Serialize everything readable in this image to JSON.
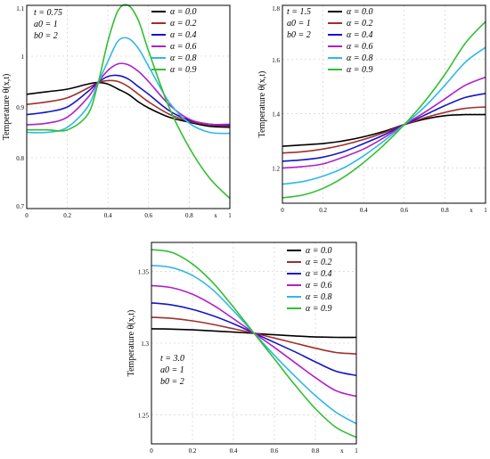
{
  "chart_data": [
    {
      "type": "line",
      "ylabel": "Temperature θ(x,t)",
      "xlabel": "x",
      "params": [
        "t = 0.75",
        "a0 = 1",
        "b0 = 2"
      ],
      "xlim": [
        0,
        1
      ],
      "ylim": [
        0.7,
        1.1
      ],
      "xticks": [
        "0",
        "0.2",
        "0.4",
        "0.6",
        "0.8",
        "x",
        "1"
      ],
      "yticks": [
        "0.7",
        "0.8",
        "0.9",
        "1",
        "1.1"
      ],
      "legend": "top-right",
      "x": [
        0,
        0.1,
        0.2,
        0.3,
        0.35,
        0.4,
        0.45,
        0.5,
        0.55,
        0.6,
        0.7,
        0.8,
        0.9,
        1.0
      ],
      "series": [
        {
          "name": "α = 0.0",
          "color": "#000000",
          "values": [
            0.925,
            0.93,
            0.935,
            0.945,
            0.948,
            0.945,
            0.935,
            0.925,
            0.91,
            0.898,
            0.88,
            0.87,
            0.862,
            0.86
          ]
        },
        {
          "name": "α = 0.2",
          "color": "#a0302a",
          "values": [
            0.905,
            0.91,
            0.918,
            0.937,
            0.948,
            0.952,
            0.95,
            0.94,
            0.925,
            0.91,
            0.886,
            0.872,
            0.865,
            0.862
          ]
        },
        {
          "name": "α = 0.4",
          "color": "#1515c8",
          "values": [
            0.885,
            0.89,
            0.9,
            0.93,
            0.948,
            0.96,
            0.962,
            0.955,
            0.94,
            0.925,
            0.893,
            0.874,
            0.866,
            0.864
          ]
        },
        {
          "name": "α = 0.6",
          "color": "#b020c8",
          "values": [
            0.865,
            0.868,
            0.88,
            0.918,
            0.948,
            0.972,
            0.985,
            0.983,
            0.97,
            0.95,
            0.905,
            0.876,
            0.866,
            0.866
          ]
        },
        {
          "name": "α = 0.8",
          "color": "#30b8e8",
          "values": [
            0.85,
            0.85,
            0.86,
            0.9,
            0.946,
            0.99,
            1.03,
            1.035,
            1.015,
            0.98,
            0.91,
            0.868,
            0.85,
            0.848
          ]
        },
        {
          "name": "α = 0.9",
          "color": "#30c030",
          "values": [
            0.855,
            0.855,
            0.855,
            0.885,
            0.945,
            1.03,
            1.09,
            1.1,
            1.07,
            1.01,
            0.9,
            0.82,
            0.76,
            0.72
          ]
        }
      ]
    },
    {
      "type": "line",
      "ylabel": "Temperature θ(x,t)",
      "xlabel": "x",
      "params": [
        "t = 1.5",
        "a0 = 1",
        "b0 = 2"
      ],
      "xlim": [
        0,
        1
      ],
      "ylim": [
        1.07,
        1.8
      ],
      "xticks": [
        "0",
        "0.2",
        "0.4",
        "0.6",
        "0.8",
        "x",
        "1"
      ],
      "yticks": [
        "1.2",
        "1.4",
        "1.6",
        "1.8"
      ],
      "legend": "top-left",
      "x": [
        0,
        0.1,
        0.2,
        0.3,
        0.4,
        0.5,
        0.6,
        0.7,
        0.8,
        0.9,
        1.0
      ],
      "series": [
        {
          "name": "α = 0.0",
          "color": "#000000",
          "values": [
            1.28,
            1.285,
            1.29,
            1.3,
            1.315,
            1.335,
            1.36,
            1.38,
            1.393,
            1.397,
            1.397
          ]
        },
        {
          "name": "α = 0.2",
          "color": "#a0302a",
          "values": [
            1.255,
            1.26,
            1.27,
            1.285,
            1.305,
            1.33,
            1.36,
            1.385,
            1.405,
            1.42,
            1.425
          ]
        },
        {
          "name": "α = 0.4",
          "color": "#1515c8",
          "values": [
            1.225,
            1.23,
            1.24,
            1.26,
            1.29,
            1.322,
            1.36,
            1.395,
            1.43,
            1.46,
            1.475
          ]
        },
        {
          "name": "α = 0.6",
          "color": "#b020c8",
          "values": [
            1.2,
            1.205,
            1.215,
            1.24,
            1.27,
            1.312,
            1.36,
            1.405,
            1.455,
            1.505,
            1.535
          ]
        },
        {
          "name": "α = 0.8",
          "color": "#30b8e8",
          "values": [
            1.14,
            1.15,
            1.17,
            1.2,
            1.245,
            1.3,
            1.36,
            1.425,
            1.505,
            1.59,
            1.645
          ]
        },
        {
          "name": "α = 0.9",
          "color": "#30c030",
          "values": [
            1.09,
            1.1,
            1.125,
            1.165,
            1.22,
            1.285,
            1.36,
            1.445,
            1.545,
            1.66,
            1.74
          ]
        }
      ]
    },
    {
      "type": "line",
      "ylabel": "Temperature θ(x,t)",
      "xlabel": "x",
      "params": [
        "t = 3.0",
        "a0 = 1",
        "b0 = 2"
      ],
      "xlim": [
        0,
        1
      ],
      "ylim": [
        1.23,
        1.37
      ],
      "xticks": [
        "0",
        "0.2",
        "0.4",
        "0.6",
        "0.8",
        "x",
        "1"
      ],
      "yticks": [
        "1.25",
        "1.3",
        "1.35"
      ],
      "legend": "top-right",
      "x": [
        0,
        0.1,
        0.2,
        0.3,
        0.4,
        0.5,
        0.6,
        0.7,
        0.8,
        0.9,
        1.0
      ],
      "series": [
        {
          "name": "α = 0.0",
          "color": "#000000",
          "values": [
            1.31,
            1.3097,
            1.3092,
            1.3085,
            1.3077,
            1.3068,
            1.3058,
            1.305,
            1.3043,
            1.304,
            1.304
          ]
        },
        {
          "name": "α = 0.2",
          "color": "#a0302a",
          "values": [
            1.318,
            1.3172,
            1.3155,
            1.313,
            1.31,
            1.307,
            1.3035,
            1.3,
            1.2965,
            1.2935,
            1.2925
          ]
        },
        {
          "name": "α = 0.4",
          "color": "#1515c8",
          "values": [
            1.328,
            1.3265,
            1.3235,
            1.319,
            1.3135,
            1.307,
            1.3005,
            1.294,
            1.287,
            1.2805,
            1.2775
          ]
        },
        {
          "name": "α = 0.6",
          "color": "#b020c8",
          "values": [
            1.34,
            1.3385,
            1.334,
            1.3265,
            1.317,
            1.307,
            1.297,
            1.2865,
            1.276,
            1.267,
            1.263
          ]
        },
        {
          "name": "α = 0.8",
          "color": "#30b8e8",
          "values": [
            1.354,
            1.3525,
            1.347,
            1.337,
            1.3225,
            1.307,
            1.2915,
            1.277,
            1.2635,
            1.252,
            1.244
          ]
        },
        {
          "name": "α = 0.9",
          "color": "#30c030",
          "values": [
            1.365,
            1.363,
            1.355,
            1.342,
            1.325,
            1.307,
            1.289,
            1.271,
            1.2545,
            1.2415,
            1.2345
          ]
        }
      ]
    }
  ]
}
